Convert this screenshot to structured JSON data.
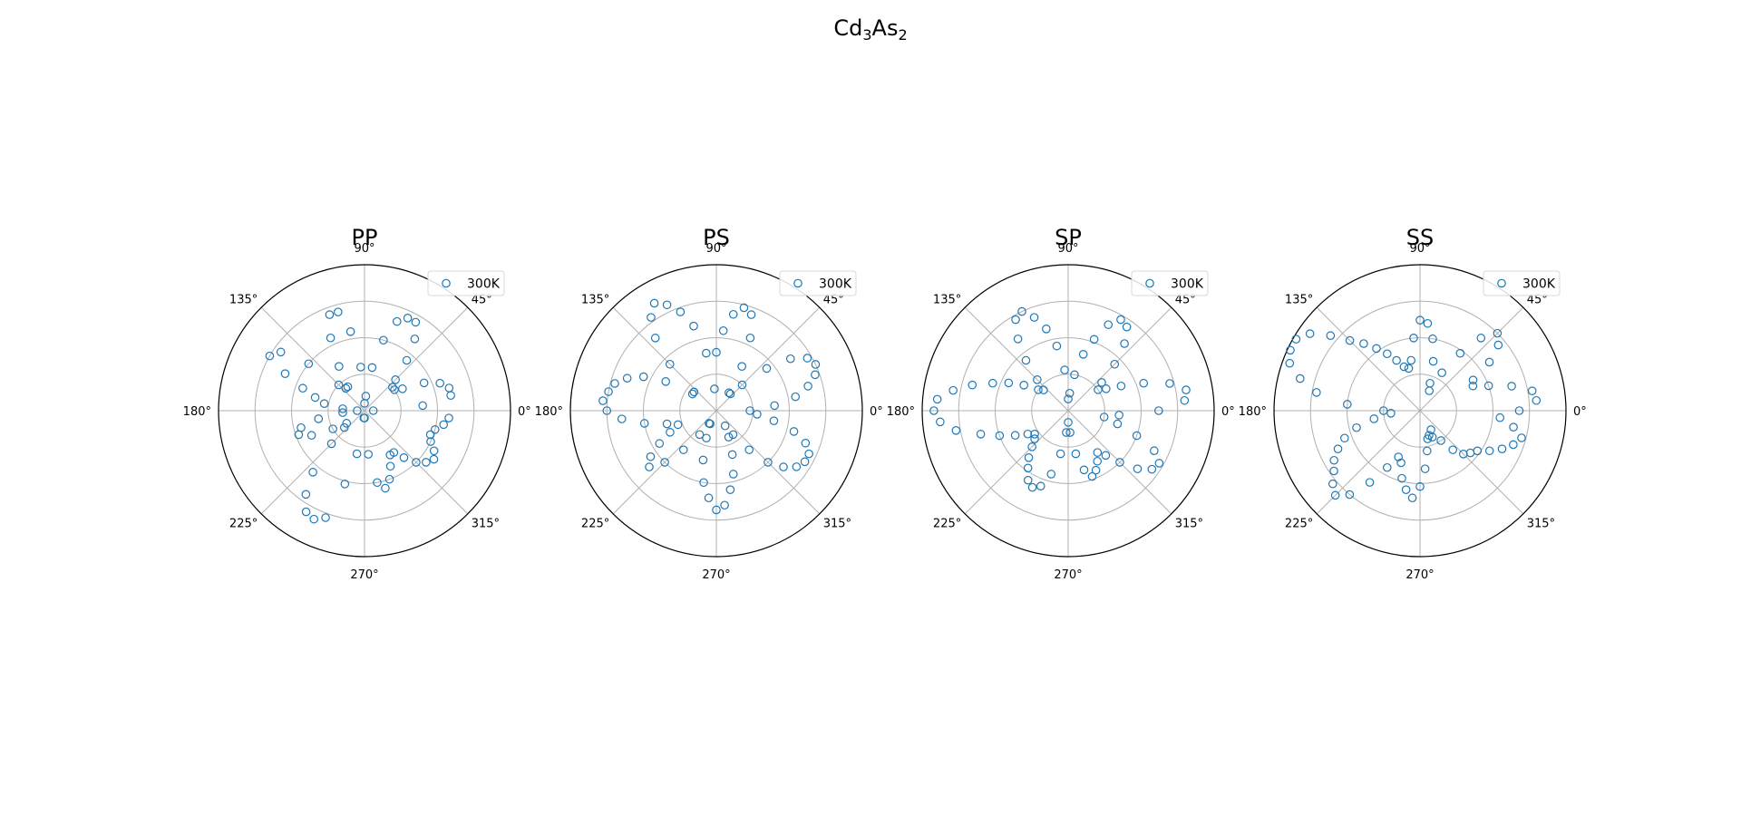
{
  "figure": {
    "suptitle_main": "Cd",
    "suptitle_sub1": "3",
    "suptitle_mid": "As",
    "suptitle_sub2": "2"
  },
  "theme": {
    "marker_color": "#1f77b4",
    "grid_color": "#b0b0b0"
  },
  "chart_data": [
    {
      "type": "scatter",
      "projection": "polar",
      "title": "PP",
      "theta_ticks": [
        "0°",
        "45°",
        "90°",
        "135°",
        "180°",
        "225°",
        "270°",
        "315°"
      ],
      "r_range": [
        0,
        1
      ],
      "r_gridlines": [
        0.25,
        0.5,
        0.75
      ],
      "grid": true,
      "legend_placement": "top-right",
      "series": [
        {
          "name": "300K",
          "marker": "open-circle",
          "theta_deg": [
            0,
            5,
            10,
            15,
            20,
            25,
            30,
            35,
            40,
            45,
            50,
            55,
            60,
            65,
            70,
            75,
            80,
            85,
            90,
            95,
            100,
            105,
            110,
            115,
            120,
            125,
            130,
            135,
            140,
            145,
            150,
            155,
            160,
            165,
            170,
            175,
            180,
            185,
            190,
            195,
            200,
            205,
            210,
            215,
            220,
            225,
            230,
            235,
            240,
            245,
            250,
            255,
            260,
            265,
            270,
            275,
            280,
            285,
            290,
            295,
            300,
            305,
            310,
            315,
            320,
            325,
            330,
            335,
            340,
            345,
            350,
            355
          ],
          "r": [
            0.06,
            0.4,
            0.6,
            0.6,
            0.55,
            0.45,
            0.3,
            0.25,
            0.25,
            0.3,
            0.45,
            0.6,
            0.7,
            0.7,
            0.65,
            0.5,
            0.3,
            0.1,
            0.05,
            0.3,
            0.55,
            0.7,
            0.7,
            0.55,
            0.35,
            0.2,
            0.2,
            0.25,
            0.5,
            0.7,
            0.75,
            0.6,
            0.45,
            0.35,
            0.28,
            0.15,
            0.05,
            0.15,
            0.32,
            0.45,
            0.48,
            0.4,
            0.25,
            0.15,
            0.18,
            0.32,
            0.55,
            0.7,
            0.8,
            0.82,
            0.78,
            0.52,
            0.3,
            0.05,
            0.05,
            0.3,
            0.5,
            0.55,
            0.5,
            0.42,
            0.35,
            0.35,
            0.42,
            0.5,
            0.55,
            0.58,
            0.55,
            0.5,
            0.48,
            0.5,
            0.55,
            0.58
          ]
        }
      ]
    },
    {
      "type": "scatter",
      "projection": "polar",
      "title": "PS",
      "theta_ticks": [
        "0°",
        "45°",
        "90°",
        "135°",
        "180°",
        "225°",
        "270°",
        "315°"
      ],
      "r_range": [
        0,
        1
      ],
      "r_gridlines": [
        0.25,
        0.5,
        0.75
      ],
      "grid": true,
      "legend_placement": "top-right",
      "series": [
        {
          "name": "300K",
          "marker": "open-circle",
          "theta_deg": [
            0,
            5,
            10,
            15,
            20,
            25,
            30,
            35,
            40,
            45,
            50,
            55,
            60,
            65,
            70,
            75,
            80,
            85,
            90,
            95,
            100,
            105,
            110,
            115,
            120,
            125,
            130,
            135,
            140,
            145,
            150,
            155,
            160,
            165,
            170,
            175,
            180,
            185,
            190,
            195,
            200,
            205,
            210,
            215,
            220,
            225,
            230,
            235,
            240,
            245,
            250,
            255,
            260,
            265,
            270,
            275,
            280,
            285,
            290,
            295,
            300,
            305,
            310,
            315,
            320,
            325,
            330,
            335,
            340,
            345,
            350,
            355
          ],
          "r": [
            0.23,
            0.4,
            0.55,
            0.65,
            0.72,
            0.75,
            0.72,
            0.62,
            0.45,
            0.25,
            0.15,
            0.15,
            0.35,
            0.55,
            0.7,
            0.73,
            0.67,
            0.55,
            0.4,
            0.15,
            0.4,
            0.6,
            0.72,
            0.8,
            0.85,
            0.78,
            0.65,
            0.45,
            0.2,
            0.2,
            0.4,
            0.55,
            0.65,
            0.72,
            0.75,
            0.78,
            0.75,
            0.65,
            0.5,
            0.35,
            0.28,
            0.35,
            0.45,
            0.55,
            0.6,
            0.5,
            0.35,
            0.2,
            0.1,
            0.1,
            0.2,
            0.35,
            0.5,
            0.6,
            0.68,
            0.65,
            0.55,
            0.45,
            0.32,
            0.2,
            0.12,
            0.2,
            0.35,
            0.5,
            0.6,
            0.67,
            0.7,
            0.7,
            0.65,
            0.55,
            0.4,
            0.28
          ]
        }
      ]
    },
    {
      "type": "scatter",
      "projection": "polar",
      "title": "SP",
      "theta_ticks": [
        "0°",
        "45°",
        "90°",
        "135°",
        "180°",
        "225°",
        "270°",
        "315°"
      ],
      "r_range": [
        0,
        1
      ],
      "r_gridlines": [
        0.25,
        0.5,
        0.75
      ],
      "grid": true,
      "legend_placement": "top-right",
      "series": [
        {
          "name": "300K",
          "marker": "open-circle",
          "theta_deg": [
            0,
            5,
            10,
            15,
            20,
            25,
            30,
            35,
            40,
            45,
            50,
            55,
            60,
            65,
            70,
            75,
            80,
            85,
            90,
            95,
            100,
            105,
            110,
            115,
            120,
            125,
            130,
            135,
            140,
            145,
            150,
            155,
            160,
            165,
            170,
            175,
            180,
            185,
            190,
            195,
            200,
            205,
            210,
            215,
            220,
            225,
            230,
            235,
            240,
            245,
            250,
            255,
            260,
            265,
            270,
            275,
            280,
            285,
            290,
            295,
            300,
            305,
            310,
            315,
            320,
            325,
            330,
            335,
            340,
            345,
            350,
            355
          ],
          "r": [
            0.62,
            0.8,
            0.82,
            0.72,
            0.55,
            0.4,
            0.3,
            0.25,
            0.3,
            0.45,
            0.6,
            0.7,
            0.72,
            0.65,
            0.52,
            0.4,
            0.25,
            0.12,
            0.08,
            0.28,
            0.45,
            0.58,
            0.68,
            0.75,
            0.72,
            0.6,
            0.45,
            0.3,
            0.22,
            0.25,
            0.35,
            0.45,
            0.55,
            0.68,
            0.8,
            0.9,
            0.92,
            0.88,
            0.78,
            0.62,
            0.5,
            0.4,
            0.32,
            0.28,
            0.3,
            0.35,
            0.42,
            0.48,
            0.55,
            0.58,
            0.55,
            0.45,
            0.3,
            0.15,
            0.08,
            0.15,
            0.3,
            0.42,
            0.48,
            0.45,
            0.4,
            0.35,
            0.4,
            0.5,
            0.62,
            0.7,
            0.72,
            0.65,
            0.5,
            0.35,
            0.25,
            0.35
          ]
        }
      ]
    },
    {
      "type": "scatter",
      "projection": "polar",
      "title": "SS",
      "theta_ticks": [
        "0°",
        "45°",
        "90°",
        "135°",
        "180°",
        "225°",
        "270°",
        "315°"
      ],
      "r_range": [
        0,
        1
      ],
      "r_gridlines": [
        0.25,
        0.5,
        0.75
      ],
      "grid": true,
      "legend_placement": "top-right",
      "series": [
        {
          "name": "300K",
          "marker": "open-circle",
          "theta_deg": [
            0,
            5,
            10,
            15,
            20,
            25,
            30,
            35,
            40,
            45,
            50,
            55,
            60,
            65,
            70,
            75,
            80,
            85,
            90,
            95,
            100,
            105,
            110,
            115,
            120,
            125,
            130,
            135,
            140,
            145,
            150,
            155,
            160,
            165,
            170,
            175,
            180,
            185,
            190,
            195,
            200,
            205,
            210,
            215,
            220,
            225,
            230,
            235,
            240,
            245,
            250,
            255,
            260,
            265,
            270,
            275,
            280,
            285,
            290,
            295,
            300,
            305,
            310,
            315,
            320,
            325,
            330,
            335,
            340,
            345,
            350,
            355
          ],
          "r": [
            0.68,
            0.8,
            0.78,
            0.65,
            0.5,
            0.4,
            0.42,
            0.58,
            0.7,
            0.75,
            0.65,
            0.48,
            0.3,
            0.15,
            0.2,
            0.35,
            0.5,
            0.6,
            0.62,
            0.5,
            0.35,
            0.3,
            0.32,
            0.38,
            0.45,
            0.52,
            0.6,
            0.68,
            0.8,
            0.92,
            0.98,
            0.98,
            0.95,
            0.85,
            0.72,
            0.5,
            0.25,
            0.2,
            0.32,
            0.45,
            0.55,
            0.62,
            0.68,
            0.72,
            0.78,
            0.82,
            0.75,
            0.6,
            0.45,
            0.35,
            0.38,
            0.48,
            0.55,
            0.6,
            0.52,
            0.4,
            0.28,
            0.2,
            0.18,
            0.2,
            0.15,
            0.25,
            0.35,
            0.42,
            0.45,
            0.48,
            0.55,
            0.62,
            0.68,
            0.72,
            0.65,
            0.55
          ]
        }
      ]
    }
  ]
}
